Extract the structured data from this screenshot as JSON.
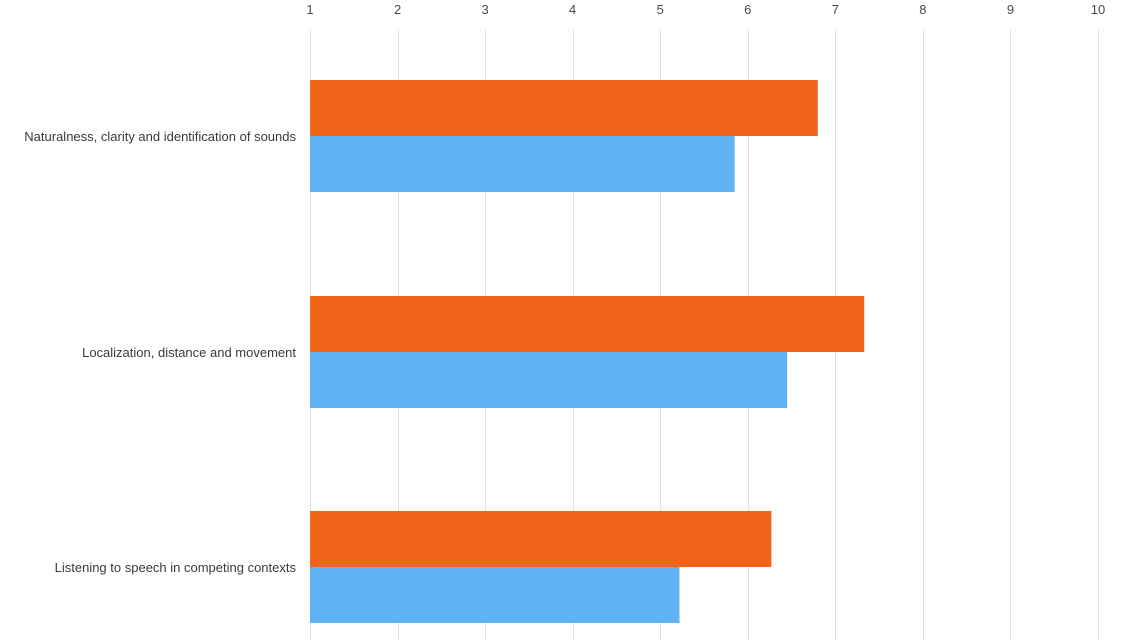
{
  "chart_data": {
    "type": "bar",
    "orientation": "horizontal",
    "categories": [
      "Naturalness, clarity and identification of sounds",
      "Localization, distance and movement",
      "Listening to speech in competing contexts"
    ],
    "series": [
      {
        "color": "#f26419",
        "values": [
          6.8,
          7.33,
          6.27
        ]
      },
      {
        "color": "#5fb3f5",
        "values": [
          5.85,
          6.45,
          5.22
        ]
      }
    ],
    "xlim": [
      1,
      10
    ],
    "x_ticks": [
      "1",
      "2",
      "3",
      "4",
      "5",
      "6",
      "7",
      "8",
      "9",
      "10"
    ],
    "x_axis_position": "top",
    "grid": true,
    "legend": "none",
    "title": "",
    "xlabel": "",
    "ylabel": ""
  }
}
